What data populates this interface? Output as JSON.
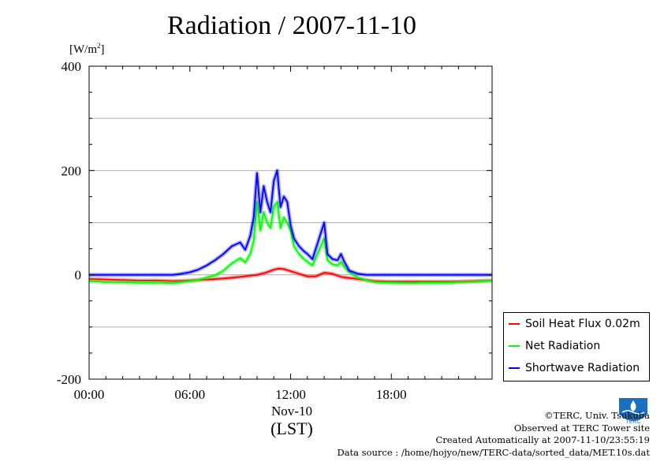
{
  "chart_data": {
    "type": "line",
    "title": "Radiation / 2007-11-10",
    "y_unit": "[W/m2]",
    "y_unit_base": "[W/m",
    "y_unit_sup": "2",
    "y_unit_close": "]",
    "ylim": [
      -200,
      400
    ],
    "yticks": [
      -200,
      0,
      200,
      400
    ],
    "y_tick_labels": [
      "-200",
      "0",
      "200",
      "400"
    ],
    "xlim": [
      0,
      24
    ],
    "xticks": [
      0,
      6,
      12,
      18
    ],
    "x_tick_labels": [
      "00:00",
      "06:00",
      "12:00",
      "18:00"
    ],
    "x_date_label": "Nov-10",
    "xlabel": "(LST)",
    "grid": true,
    "legend_position": "right-bottom",
    "series": [
      {
        "name": "Soil Heat Flux 0.02m",
        "color": "#ff0000",
        "x": [
          0,
          1,
          2,
          3,
          4,
          5,
          6,
          7,
          8,
          9,
          9.5,
          10,
          10.5,
          11,
          11.3,
          11.6,
          12,
          12.5,
          13,
          13.5,
          14,
          14.5,
          15,
          16,
          17,
          18,
          19,
          20,
          21,
          22,
          23,
          24
        ],
        "values": [
          -8,
          -9,
          -10,
          -11,
          -11,
          -12,
          -11,
          -9,
          -7,
          -4,
          -2,
          0,
          4,
          10,
          12,
          11,
          7,
          2,
          -3,
          -3,
          4,
          2,
          -4,
          -8,
          -12,
          -13,
          -13,
          -13,
          -13,
          -13,
          -12,
          -11
        ]
      },
      {
        "name": "Net Radiation",
        "color": "#00ff00",
        "x": [
          0,
          1,
          2,
          3,
          4,
          5,
          5.5,
          6,
          6.5,
          7,
          7.5,
          8,
          8.5,
          9,
          9.3,
          9.6,
          9.8,
          10,
          10.2,
          10.4,
          10.6,
          10.8,
          11,
          11.2,
          11.4,
          11.6,
          11.8,
          12,
          12.2,
          12.5,
          12.8,
          13,
          13.3,
          13.6,
          13.8,
          14,
          14.2,
          14.5,
          14.8,
          15,
          15.2,
          15.5,
          16,
          16.5,
          17,
          18,
          19,
          20,
          21,
          22,
          23,
          24
        ],
        "values": [
          -12,
          -14,
          -14,
          -15,
          -15,
          -16,
          -14,
          -12,
          -10,
          -5,
          -1,
          8,
          22,
          32,
          24,
          40,
          65,
          140,
          85,
          120,
          100,
          90,
          130,
          140,
          90,
          110,
          100,
          85,
          55,
          40,
          30,
          25,
          18,
          40,
          55,
          70,
          28,
          20,
          18,
          25,
          15,
          5,
          -5,
          -10,
          -14,
          -15,
          -16,
          -15,
          -15,
          -14,
          -13,
          -11
        ]
      },
      {
        "name": "Shortwave Radiation",
        "color": "#0000ff",
        "x": [
          0,
          1,
          2,
          3,
          4,
          5,
          5.5,
          6,
          6.5,
          7,
          7.5,
          8,
          8.5,
          9,
          9.3,
          9.6,
          9.8,
          10,
          10.2,
          10.4,
          10.6,
          10.8,
          11,
          11.2,
          11.4,
          11.6,
          11.8,
          12,
          12.2,
          12.5,
          12.8,
          13,
          13.3,
          13.6,
          13.8,
          14,
          14.2,
          14.5,
          14.8,
          15,
          15.2,
          15.5,
          16,
          16.5,
          17,
          18,
          19,
          20,
          21,
          22,
          23,
          24
        ],
        "values": [
          0,
          0,
          0,
          0,
          0,
          0,
          2,
          5,
          10,
          18,
          28,
          40,
          55,
          62,
          48,
          75,
          110,
          195,
          120,
          170,
          140,
          120,
          180,
          200,
          130,
          150,
          140,
          95,
          70,
          55,
          45,
          40,
          30,
          60,
          80,
          100,
          40,
          30,
          28,
          40,
          25,
          8,
          2,
          0,
          0,
          0,
          0,
          0,
          0,
          0,
          0,
          0
        ]
      }
    ]
  },
  "legend": {
    "items": [
      {
        "label": "Soil Heat Flux 0.02m",
        "color": "#ff0000"
      },
      {
        "label": "Net Radiation",
        "color": "#00ff00"
      },
      {
        "label": "Shortwave Radiation",
        "color": "#0000ff"
      }
    ]
  },
  "footer": {
    "copyright": "©TERC, Univ. Tsukuba",
    "observed": "Observed at TERC Tower site",
    "created": "Created Automatically at 2007-11-10/23:55:19",
    "source": "Data source : /home/hojyo/new/TERC-data/sorted_data/MET.10s.dat"
  },
  "logo": {
    "text": "TERC",
    "color": "#1a6fc0"
  }
}
